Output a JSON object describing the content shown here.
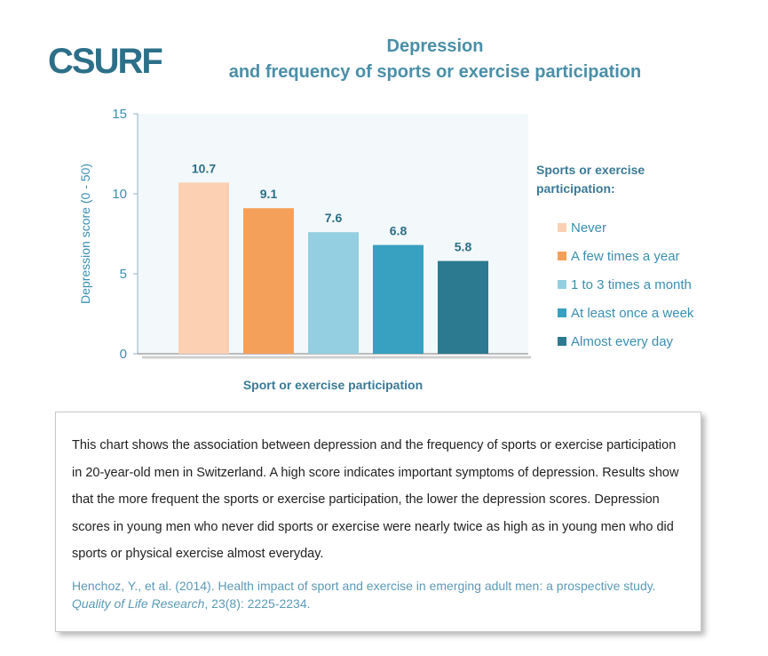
{
  "logo_text": "CSURF",
  "title_line1": "Depression",
  "title_line2": "and frequency of sports or exercise participation",
  "chart_data": {
    "type": "bar",
    "categories": [
      "Never",
      "A few times a year",
      "1 to 3 times a month",
      "At least once a week",
      "Almost every day"
    ],
    "values": [
      10.7,
      9.1,
      7.6,
      6.8,
      5.8
    ],
    "value_labels": [
      "10.7",
      "9.1",
      "7.6",
      "6.8",
      "5.8"
    ],
    "colors": [
      "#fbd0b3",
      "#f5a05a",
      "#93cfe0",
      "#38a0c0",
      "#2c7a8f"
    ],
    "xlabel": "Sport or exercise participation",
    "ylabel": "Depression score  (0 - 50)",
    "ylim": [
      0,
      15
    ],
    "yticks": [
      0,
      5,
      10,
      15
    ],
    "ytick_labels": [
      "0",
      "5",
      "10",
      "15"
    ],
    "legend_title": "Sports or exercise participation:",
    "legend_title_line1": "Sports or exercise",
    "legend_title_line2": "participation:",
    "legend_position": "right",
    "grid": false
  },
  "description": "This chart shows the association between depression and the frequency of sports or exercise participation in 20-year-old men in Switzerland. A high score indicates important symptoms of depression. Results show that the more frequent the sports or exercise participation, the lower the depression scores. Depression scores in young men who never did sports or exercise were nearly twice as high as in young men who did sports or physical exercise almost everyday.",
  "reference": {
    "part1": "Henchoz, Y., et al. (2014). Health impact of sport and exercise in emerging adult men: a prospective study. ",
    "journal": "Quality of Life Research",
    "part2": ", 23(8): 2225-2234."
  },
  "colors": {
    "title": "#4a8fa8",
    "axis_text": "#3a8fb0",
    "plot_bg": "#f3f8fa",
    "logo": "#2c6f88"
  }
}
